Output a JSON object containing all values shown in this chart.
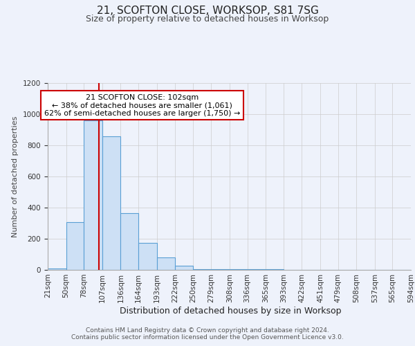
{
  "title": "21, SCOFTON CLOSE, WORKSOP, S81 7SG",
  "subtitle": "Size of property relative to detached houses in Worksop",
  "xlabel": "Distribution of detached houses by size in Worksop",
  "ylabel": "Number of detached properties",
  "bin_edges": [
    21,
    50,
    78,
    107,
    136,
    164,
    193,
    222,
    250,
    279,
    308,
    336,
    365,
    393,
    422,
    451,
    479,
    508,
    537,
    565,
    594
  ],
  "bar_heights": [
    10,
    305,
    960,
    860,
    365,
    175,
    80,
    25,
    5,
    5,
    4,
    3,
    3,
    2,
    2,
    1,
    1,
    1,
    1,
    1
  ],
  "bar_facecolor": "#cde0f5",
  "bar_edgecolor": "#5a9fd4",
  "grid_color": "#cccccc",
  "background_color": "#eef2fb",
  "red_line_x": 102,
  "annotation_text": "21 SCOFTON CLOSE: 102sqm\n← 38% of detached houses are smaller (1,061)\n62% of semi-detached houses are larger (1,750) →",
  "annotation_box_color": "#ffffff",
  "annotation_box_edgecolor": "#cc0000",
  "red_line_color": "#cc0000",
  "ylim": [
    0,
    1200
  ],
  "footer_text": "Contains HM Land Registry data © Crown copyright and database right 2024.\nContains public sector information licensed under the Open Government Licence v3.0.",
  "title_fontsize": 11,
  "subtitle_fontsize": 9,
  "ylabel_fontsize": 8,
  "xlabel_fontsize": 9,
  "tick_fontsize": 7.5,
  "annotation_fontsize": 8
}
